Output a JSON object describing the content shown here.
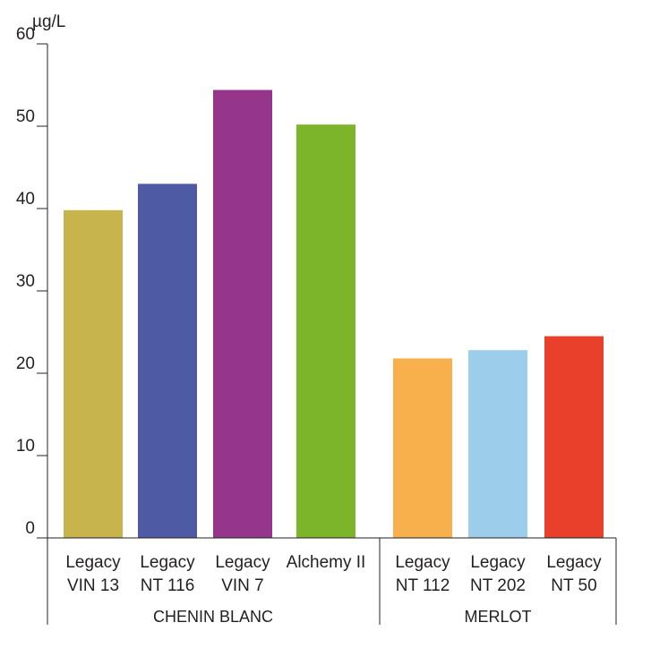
{
  "chart_data": {
    "type": "bar",
    "title": "",
    "ylabel": "µg/L",
    "xlabel": "",
    "ylim": [
      0,
      60
    ],
    "yticks": [
      0,
      10,
      20,
      30,
      40,
      50,
      60
    ],
    "grid": false,
    "categories": [
      {
        "label": [
          "Legacy",
          "VIN 13"
        ],
        "value": 39.8,
        "color": "#c8b44c",
        "group": "CHENIN BLANC"
      },
      {
        "label": [
          "Legacy",
          "NT 116"
        ],
        "value": 43,
        "color": "#4f5aa5",
        "group": "CHENIN BLANC"
      },
      {
        "label": [
          "Legacy",
          "VIN 7"
        ],
        "value": 54.4,
        "color": "#95358b",
        "group": "CHENIN BLANC"
      },
      {
        "label": [
          "Alchemy II"
        ],
        "value": 50.2,
        "color": "#7db52a",
        "group": "CHENIN BLANC"
      },
      {
        "label": [
          "Legacy",
          "NT 112"
        ],
        "value": 21.8,
        "color": "#f7b04b",
        "group": "MERLOT"
      },
      {
        "label": [
          "Legacy",
          "NT 202"
        ],
        "value": 22.8,
        "color": "#9ccdea",
        "group": "MERLOT"
      },
      {
        "label": [
          "Legacy",
          "NT 50"
        ],
        "value": 24.5,
        "color": "#e8402a",
        "group": "MERLOT"
      }
    ],
    "groups": [
      "CHENIN BLANC",
      "MERLOT"
    ]
  }
}
